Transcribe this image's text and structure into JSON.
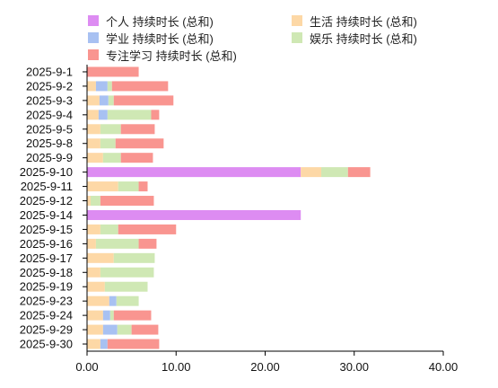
{
  "chart_data": {
    "type": "bar",
    "orientation": "horizontal",
    "stacked": true,
    "categories": [
      "2025-9-1",
      "2025-9-2",
      "2025-9-3",
      "2025-9-4",
      "2025-9-5",
      "2025-9-8",
      "2025-9-9",
      "2025-9-10",
      "2025-9-11",
      "2025-9-12",
      "2025-9-14",
      "2025-9-15",
      "2025-9-16",
      "2025-9-17",
      "2025-9-18",
      "2025-9-19",
      "2025-9-23",
      "2025-9-24",
      "2025-9-29",
      "2025-9-30"
    ],
    "series": [
      {
        "name": "个人 持续时长 (总和)",
        "color": "#dd8cf2",
        "values": [
          0,
          0,
          0,
          0,
          0,
          0,
          0,
          24.0,
          0,
          0,
          24.0,
          0,
          0,
          0,
          0,
          0,
          0,
          0,
          0,
          0
        ]
      },
      {
        "name": "生活 持续时长 (总和)",
        "color": "#fdd8a6",
        "values": [
          0,
          1.0,
          1.4,
          1.3,
          1.5,
          1.5,
          1.8,
          2.3,
          3.5,
          0.4,
          0,
          1.5,
          1.0,
          3.0,
          1.5,
          2.0,
          2.5,
          1.8,
          1.8,
          1.5
        ]
      },
      {
        "name": "学业 持续时长 (总和)",
        "color": "#a8c1f2",
        "values": [
          0,
          1.3,
          1.0,
          1.0,
          0,
          0,
          0,
          0,
          0,
          0,
          0,
          0,
          0,
          0,
          0,
          0,
          0.8,
          0.8,
          1.6,
          0.8
        ]
      },
      {
        "name": "娱乐 持续时长 (总和)",
        "color": "#cfe8b4",
        "values": [
          0,
          0.5,
          0.6,
          4.9,
          2.3,
          1.7,
          2.0,
          3.0,
          2.3,
          1.1,
          0,
          2.0,
          4.8,
          4.6,
          6.0,
          4.8,
          2.5,
          0.4,
          1.6,
          0
        ]
      },
      {
        "name": "专注学习 持续时长 (总和)",
        "color": "#f99590",
        "values": [
          5.8,
          6.3,
          6.7,
          0.9,
          3.8,
          5.4,
          3.6,
          2.5,
          1.0,
          6.0,
          0,
          6.5,
          2.0,
          0,
          0,
          0,
          0,
          4.2,
          3.0,
          5.8
        ]
      }
    ],
    "xlim": [
      0,
      40
    ],
    "xticks": [
      "0.00",
      "10.00",
      "20.00",
      "30.00",
      "40.00"
    ],
    "grid": false,
    "legend_position": "top"
  }
}
